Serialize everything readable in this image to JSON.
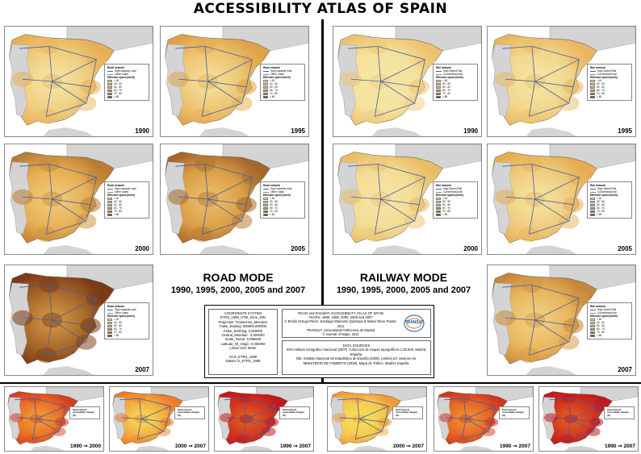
{
  "page": {
    "title": "ACCESSIBILITY ATLAS OF SPAIN"
  },
  "road_section": {
    "title": "ROAD MODE",
    "subtitle": "1990, 1995, 2000, 2005 and 2007"
  },
  "rail_section": {
    "title": "RAILWAY MODE",
    "subtitle": "1990, 1995, 2000, 2005 and 2007"
  },
  "road_maps": [
    {
      "year": "1990",
      "intensity": 0.2
    },
    {
      "year": "1995",
      "intensity": 0.28
    },
    {
      "year": "2000",
      "intensity": 0.45
    },
    {
      "year": "2005",
      "intensity": 0.55
    },
    {
      "year": "2007",
      "intensity": 0.8
    }
  ],
  "rail_maps": [
    {
      "year": "1990",
      "intensity": 0.05
    },
    {
      "year": "1995",
      "intensity": 0.14
    },
    {
      "year": "2000",
      "intensity": 0.1
    },
    {
      "year": "2005",
      "intensity": 0.22
    },
    {
      "year": "2007",
      "intensity": 0.4
    }
  ],
  "change_maps": [
    {
      "label_from": "1990",
      "label_to": "2000",
      "intensity": 0.55
    },
    {
      "label_from": "2000",
      "label_to": "2007",
      "intensity": 0.25
    },
    {
      "label_from": "1990",
      "label_to": "2007",
      "intensity": 0.85
    },
    {
      "label_from": "2000",
      "label_to": "2007",
      "intensity": 0.1
    },
    {
      "label_from": "1990",
      "label_to": "2007",
      "intensity": 0.6
    },
    {
      "label_from": "1990",
      "label_to": "2007",
      "intensity": 0.85
    }
  ],
  "legend_road": {
    "title": "Road network",
    "line1": "High capacity road",
    "line2": "Other roads",
    "sub": "Effective speed (km/h)",
    "classes": [
      "< 40",
      "40 - 50",
      "50 - 60",
      "60 - 70",
      "70 - 80",
      "> 80"
    ]
  },
  "legend_rail": {
    "title": "Rail network",
    "line1": "High Speed Rail",
    "line2": "Conventional rail",
    "sub": "Effective speed (km/h)",
    "classes": [
      "< 40",
      "40 - 50",
      "50 - 60",
      "60 - 70",
      "70 - 80",
      "> 80"
    ]
  },
  "legend_change": {
    "title": "Road network",
    "sub": "Accessibility changes (%)"
  },
  "coord_system": {
    "heading": "COORDINATE SYSTEM",
    "lines": [
      "ETRS_1989_UTM_Zone_30N",
      "Projection: Transverse_Mercator",
      "False_Easting: 500000,000000",
      "False_Northing: 0,000000",
      "Central_Meridian: -3,000000",
      "Scale_Factor: 0,999600",
      "Latitude_Of_Origin: 0,000000",
      "Linear Unit: Meter",
      "",
      "GCS_ETRS_1989",
      "Datum: D_ETRS_1989"
    ]
  },
  "atlas_info": {
    "lines": [
      "ROAD and RAILWAY ACCESSIBILITY ATLAS OF SPAIN",
      "YEARS: 1990, 1995, 2000, 2005 and 2007",
      "© Emilio Ortega Pérez, Santiago Mancebo Quintana & Isabel Otero Pastor, 2011",
      "TRANSyT- Universidad Politécnica de Madrid",
      "© Journal of Maps, 2011"
    ],
    "logo_text": "TRANSyT"
  },
  "data_sources": {
    "heading": "DATA SOURCES",
    "lines": [
      "IGN Instituto Geográfico Nacional (2007). Colección de mapas topográficos 1:25.000. Madrid. España.",
      "INE: Instituto Nacional de Estadística de España (2008). [online] url: www.ine.es.",
      "MINISTERIO DE FOMENTO (2008). Mapa de Tráfico. Madrid. España."
    ]
  },
  "colors": {
    "background": "#ffffff",
    "sea": "#ffffff",
    "land_outside": "#d4d4d4",
    "low": "#f7e7a6",
    "mid": "#e5a94a",
    "high": "#7a3a16",
    "change_low": "#f6e15a",
    "change_mid": "#ef7a26",
    "change_high": "#c4171c",
    "road_line": "#3e5ea8"
  }
}
